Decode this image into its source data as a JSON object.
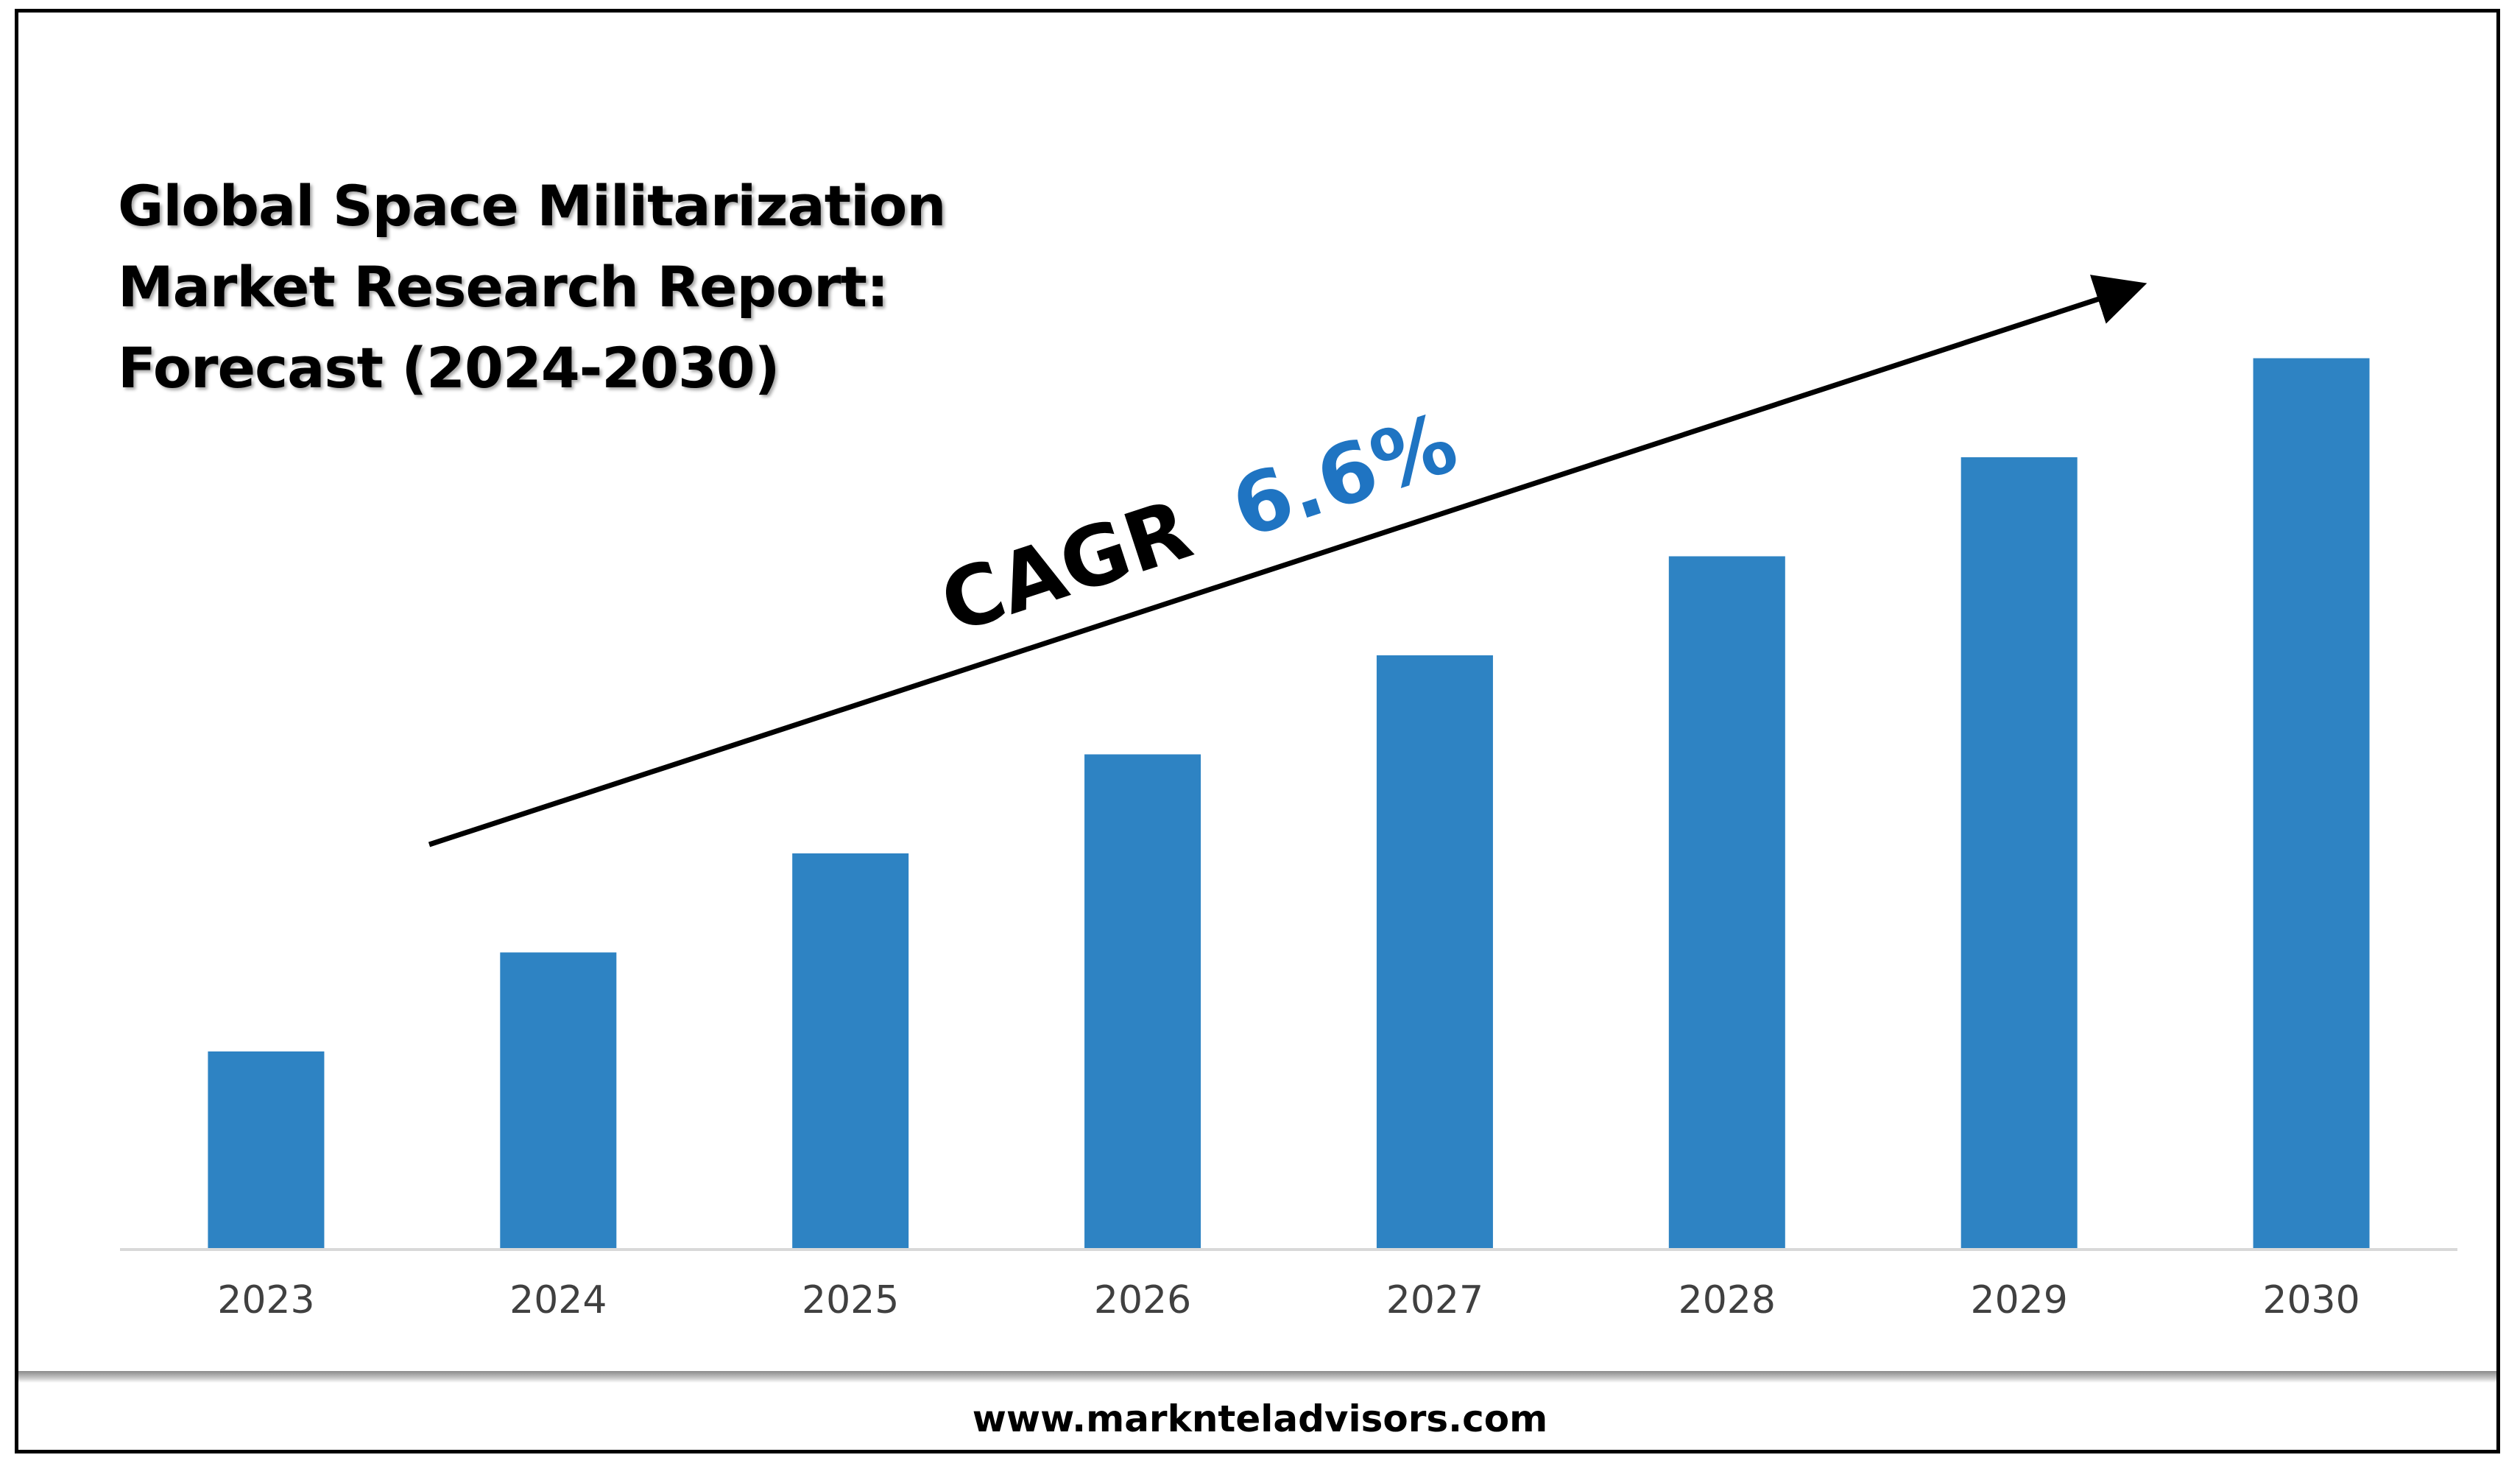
{
  "title_lines": [
    "Global Space Militarization",
    "Market Research Report:",
    "Forecast (2024-2030)"
  ],
  "annotation": {
    "prefix": "CAGR",
    "value": "6.6%",
    "prefix_color": "#000000",
    "value_color": "#1f74c2"
  },
  "footer": {
    "url": "www.marknteladvisors.com"
  },
  "colors": {
    "bar": "#2e83c3",
    "axis": "#d9d9d9",
    "frame": "#000000"
  },
  "chart_data": {
    "type": "bar",
    "categories": [
      "2023",
      "2024",
      "2025",
      "2026",
      "2027",
      "2028",
      "2029",
      "2030"
    ],
    "values": [
      2.0,
      3.0,
      4.0,
      5.0,
      6.0,
      7.0,
      8.0,
      9.0
    ],
    "value_note": "relative bar heights, no value axis shown",
    "ylim": [
      0,
      10
    ],
    "grid": false,
    "legend": "none",
    "trend_arrow": true
  }
}
